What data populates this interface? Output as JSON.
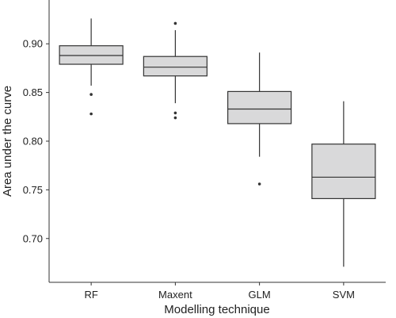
{
  "chart_data": {
    "type": "box",
    "xlabel": "Modelling technique",
    "ylabel": "Area under the curve",
    "ylim": [
      0.655,
      0.945
    ],
    "yticks": [
      0.7,
      0.75,
      0.8,
      0.85,
      0.9
    ],
    "ytick_labels": [
      "0.70",
      "0.75",
      "0.80",
      "0.85",
      "0.90"
    ],
    "grid": false,
    "legend": "none",
    "box_fill": "#d9d9da",
    "stroke_color": "#333333",
    "categories": [
      "RF",
      "Maxent",
      "GLM",
      "SVM"
    ],
    "boxes": [
      {
        "name": "RF",
        "whisker_low": 0.857,
        "q1": 0.879,
        "median": 0.888,
        "q3": 0.898,
        "whisker_high": 0.926,
        "outliers": [
          0.848,
          0.828
        ]
      },
      {
        "name": "Maxent",
        "whisker_low": 0.839,
        "q1": 0.867,
        "median": 0.876,
        "q3": 0.887,
        "whisker_high": 0.914,
        "outliers": [
          0.921,
          0.829,
          0.824
        ]
      },
      {
        "name": "GLM",
        "whisker_low": 0.784,
        "q1": 0.818,
        "median": 0.833,
        "q3": 0.851,
        "whisker_high": 0.891,
        "outliers": [
          0.756
        ]
      },
      {
        "name": "SVM",
        "whisker_low": 0.671,
        "q1": 0.741,
        "median": 0.763,
        "q3": 0.797,
        "whisker_high": 0.841,
        "outliers": []
      }
    ]
  }
}
